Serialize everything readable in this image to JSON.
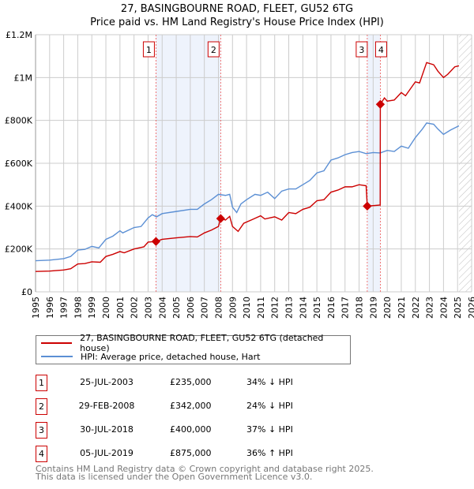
{
  "title": "27, BASINGBOURNE ROAD, FLEET, GU52 6TG",
  "subtitle": "Price paid vs. HM Land Registry's House Price Index (HPI)",
  "chart_data": {
    "type": "line",
    "xlim": [
      1995,
      2026
    ],
    "ylim": [
      0,
      1200000
    ],
    "yticks": [
      {
        "v": 0,
        "label": "£0"
      },
      {
        "v": 200000,
        "label": "£200K"
      },
      {
        "v": 400000,
        "label": "£400K"
      },
      {
        "v": 600000,
        "label": "£600K"
      },
      {
        "v": 800000,
        "label": "£800K"
      },
      {
        "v": 1000000,
        "label": "£1M"
      },
      {
        "v": 1200000,
        "label": "£1.2M"
      }
    ],
    "xticks": [
      "1995",
      "1996",
      "1997",
      "1998",
      "1999",
      "2000",
      "2001",
      "2002",
      "2003",
      "2004",
      "2005",
      "2006",
      "2007",
      "2008",
      "2009",
      "2010",
      "2011",
      "2012",
      "2013",
      "2014",
      "2015",
      "2016",
      "2017",
      "2018",
      "2019",
      "2020",
      "2021",
      "2022",
      "2023",
      "2024",
      "2025",
      "2026"
    ],
    "forecast_from": 2025.1,
    "bands": [
      [
        2003.56,
        2008.16
      ],
      [
        2018.58,
        2019.51
      ]
    ],
    "series": [
      {
        "name": "27, BASINGBOURNE ROAD, FLEET, GU52 6TG (detached house)",
        "color": "#cc0000",
        "points": [
          [
            1995,
            95
          ],
          [
            1996,
            97
          ],
          [
            1997,
            102
          ],
          [
            1997.5,
            108
          ],
          [
            1998,
            130
          ],
          [
            1998.5,
            132
          ],
          [
            1999,
            140
          ],
          [
            1999.6,
            138
          ],
          [
            2000,
            165
          ],
          [
            2000.5,
            175
          ],
          [
            2001,
            188
          ],
          [
            2001.3,
            182
          ],
          [
            2002,
            200
          ],
          [
            2002.7,
            210
          ],
          [
            2003,
            232
          ],
          [
            2003.56,
            235
          ],
          [
            2004,
            245
          ],
          [
            2005,
            252
          ],
          [
            2006,
            258
          ],
          [
            2006.5,
            256
          ],
          [
            2007,
            275
          ],
          [
            2007.5,
            288
          ],
          [
            2008,
            305
          ],
          [
            2008.16,
            342
          ],
          [
            2008.5,
            335
          ],
          [
            2008.8,
            352
          ],
          [
            2009,
            305
          ],
          [
            2009.4,
            282
          ],
          [
            2009.8,
            320
          ],
          [
            2010.5,
            340
          ],
          [
            2011,
            355
          ],
          [
            2011.3,
            340
          ],
          [
            2012,
            350
          ],
          [
            2012.5,
            335
          ],
          [
            2013,
            370
          ],
          [
            2013.5,
            365
          ],
          [
            2014,
            385
          ],
          [
            2014.5,
            395
          ],
          [
            2015,
            425
          ],
          [
            2015.5,
            430
          ],
          [
            2016,
            465
          ],
          [
            2016.5,
            475
          ],
          [
            2017,
            490
          ],
          [
            2017.5,
            490
          ],
          [
            2018,
            500
          ],
          [
            2018.5,
            495
          ],
          [
            2018.58,
            400
          ],
          [
            2019.5,
            405
          ],
          [
            2019.51,
            875
          ],
          [
            2019.8,
            905
          ],
          [
            2020,
            890
          ],
          [
            2020.5,
            895
          ],
          [
            2021,
            930
          ],
          [
            2021.3,
            915
          ],
          [
            2022,
            980
          ],
          [
            2022.3,
            975
          ],
          [
            2022.8,
            1070
          ],
          [
            2023.3,
            1060
          ],
          [
            2023.6,
            1030
          ],
          [
            2024,
            1000
          ],
          [
            2024.3,
            1015
          ],
          [
            2024.8,
            1050
          ],
          [
            2025.1,
            1055
          ]
        ]
      },
      {
        "name": "HPI: Average price, detached house, Hart",
        "color": "#5b8fd4",
        "points": [
          [
            1995,
            145
          ],
          [
            1996,
            148
          ],
          [
            1997,
            155
          ],
          [
            1997.5,
            165
          ],
          [
            1998,
            195
          ],
          [
            1998.5,
            198
          ],
          [
            1999,
            212
          ],
          [
            1999.5,
            205
          ],
          [
            2000,
            245
          ],
          [
            2000.5,
            260
          ],
          [
            2001,
            285
          ],
          [
            2001.2,
            275
          ],
          [
            2002,
            300
          ],
          [
            2002.5,
            305
          ],
          [
            2003,
            345
          ],
          [
            2003.3,
            360
          ],
          [
            2003.6,
            350
          ],
          [
            2004,
            365
          ],
          [
            2005,
            375
          ],
          [
            2006,
            385
          ],
          [
            2006.5,
            385
          ],
          [
            2007,
            410
          ],
          [
            2007.5,
            430
          ],
          [
            2008,
            455
          ],
          [
            2008.5,
            450
          ],
          [
            2008.8,
            455
          ],
          [
            2009,
            395
          ],
          [
            2009.3,
            370
          ],
          [
            2009.6,
            410
          ],
          [
            2010,
            430
          ],
          [
            2010.6,
            455
          ],
          [
            2011,
            450
          ],
          [
            2011.5,
            465
          ],
          [
            2012,
            435
          ],
          [
            2012.5,
            470
          ],
          [
            2013,
            480
          ],
          [
            2013.5,
            480
          ],
          [
            2014,
            500
          ],
          [
            2014.5,
            520
          ],
          [
            2015,
            555
          ],
          [
            2015.5,
            565
          ],
          [
            2016,
            615
          ],
          [
            2016.5,
            625
          ],
          [
            2017,
            640
          ],
          [
            2017.5,
            650
          ],
          [
            2018,
            655
          ],
          [
            2018.5,
            645
          ],
          [
            2019,
            650
          ],
          [
            2019.5,
            648
          ],
          [
            2020,
            660
          ],
          [
            2020.5,
            655
          ],
          [
            2021,
            680
          ],
          [
            2021.5,
            670
          ],
          [
            2022,
            720
          ],
          [
            2022.5,
            760
          ],
          [
            2022.8,
            788
          ],
          [
            2023.3,
            782
          ],
          [
            2023.6,
            760
          ],
          [
            2024,
            735
          ],
          [
            2024.5,
            755
          ],
          [
            2025.1,
            775
          ]
        ]
      }
    ],
    "sales": [
      {
        "n": "1",
        "x": 2003.56,
        "price": 235,
        "date": "25-JUL-2003",
        "price_label": "£235,000",
        "hpi": "34% ↓ HPI"
      },
      {
        "n": "2",
        "x": 2008.16,
        "price": 342,
        "date": "29-FEB-2008",
        "price_label": "£342,000",
        "hpi": "24% ↓ HPI"
      },
      {
        "n": "3",
        "x": 2018.58,
        "price": 400,
        "date": "30-JUL-2018",
        "price_label": "£400,000",
        "hpi": "37% ↓ HPI"
      },
      {
        "n": "4",
        "x": 2019.51,
        "price": 875,
        "date": "05-JUL-2019",
        "price_label": "£875,000",
        "hpi": "36% ↑ HPI"
      }
    ]
  },
  "footer": [
    "Contains HM Land Registry data © Crown copyright and database right 2025.",
    "This data is licensed under the Open Government Licence v3.0."
  ]
}
